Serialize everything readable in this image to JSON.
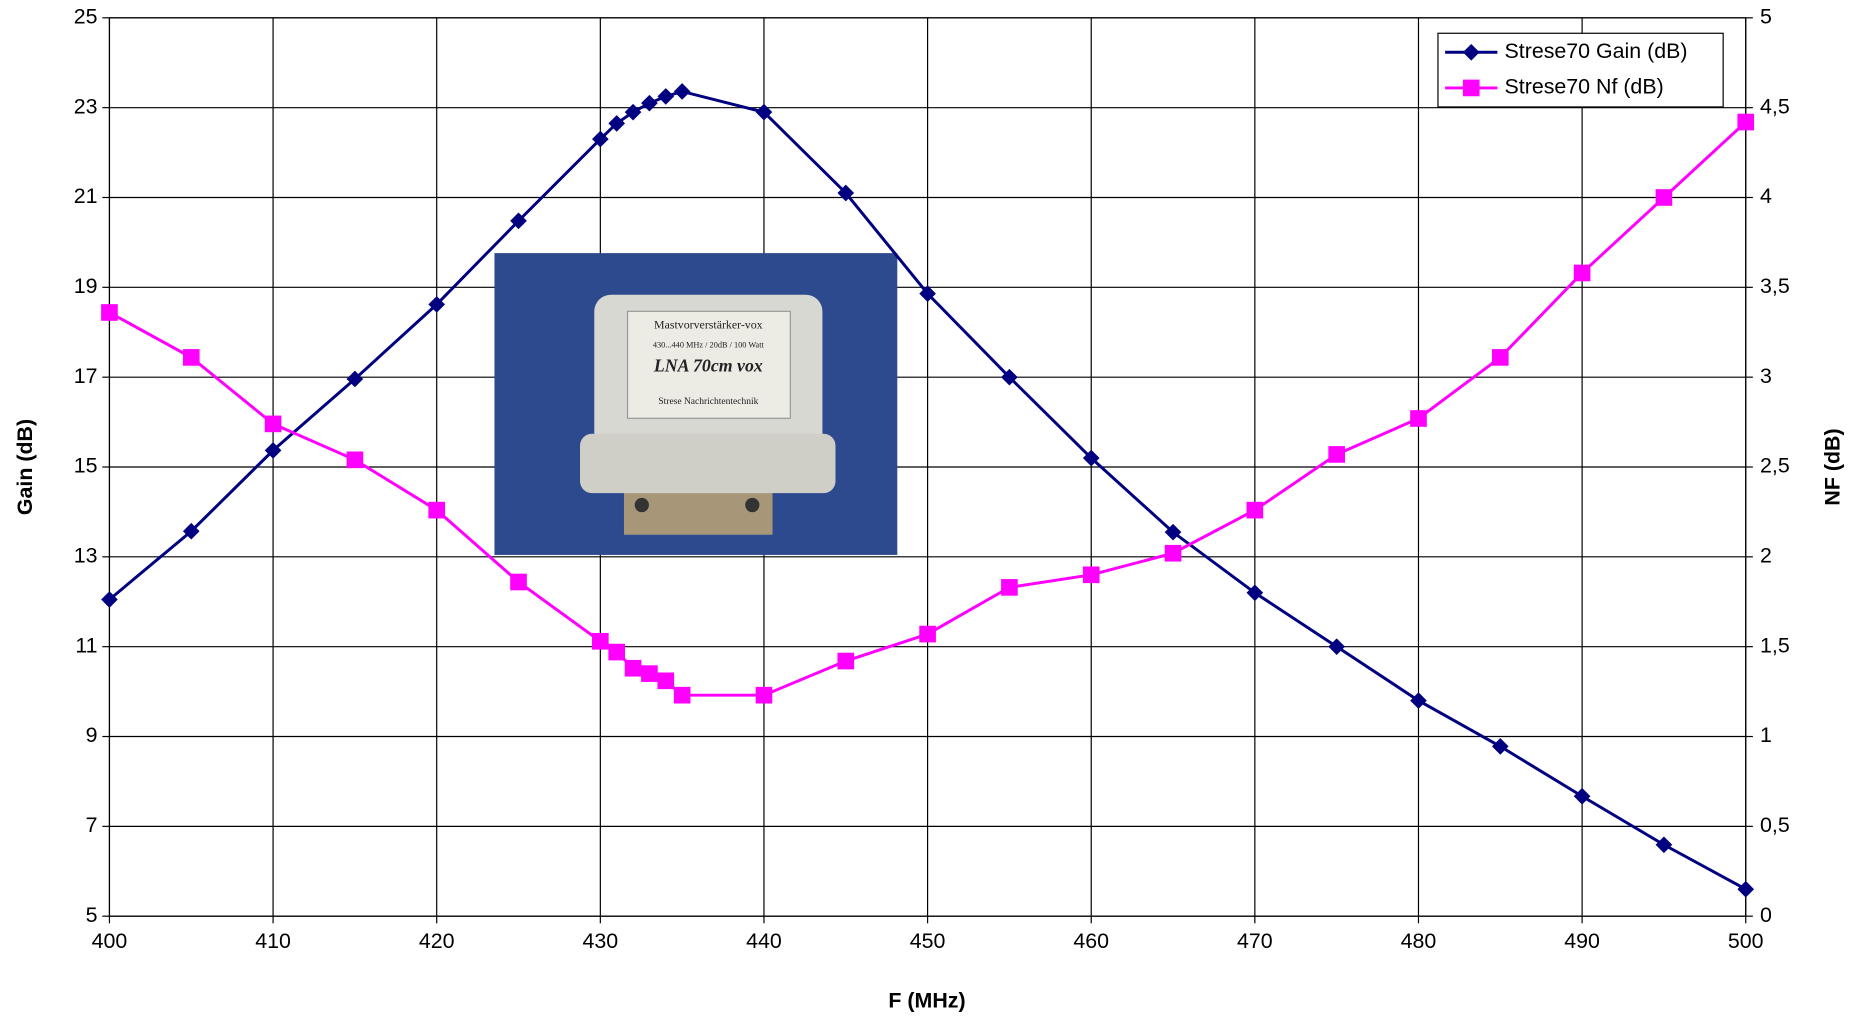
{
  "chart_data": {
    "type": "line",
    "xlabel": "F (MHz)",
    "ylabel": "Gain (dB)",
    "y2label": "NF (dB)",
    "x": [
      400,
      405,
      410,
      415,
      420,
      425,
      430,
      431,
      432,
      433,
      434,
      435,
      440,
      445,
      450,
      455,
      460,
      465,
      470,
      475,
      480,
      485,
      490,
      495,
      500
    ],
    "series": [
      {
        "name": "Strese70 Gain (dB)",
        "color": "#000080",
        "marker": "diamond",
        "values": [
          12.05,
          13.57,
          15.37,
          16.96,
          18.62,
          20.48,
          22.3,
          22.65,
          22.9,
          23.1,
          23.25,
          23.36,
          22.9,
          21.1,
          18.86,
          17.0,
          15.2,
          13.55,
          12.2,
          11.0,
          9.8,
          8.78,
          7.67,
          6.59,
          5.6
        ]
      },
      {
        "name": "Strese70 Nf (dB)",
        "color": "#ff00ff",
        "marker": "square",
        "axis": "y2",
        "values": [
          3.36,
          3.11,
          2.74,
          2.54,
          2.26,
          1.86,
          1.53,
          1.47,
          1.38,
          1.35,
          1.31,
          1.23,
          1.23,
          1.42,
          1.57,
          1.83,
          1.9,
          2.02,
          2.26,
          2.57,
          2.77,
          3.11,
          3.58,
          4.0,
          4.42
        ]
      }
    ],
    "xlim": [
      400,
      500
    ],
    "xticks": [
      400,
      410,
      420,
      430,
      440,
      450,
      460,
      470,
      480,
      490,
      500
    ],
    "ylim": [
      5,
      25
    ],
    "yticks": [
      5,
      7,
      9,
      11,
      13,
      15,
      17,
      19,
      21,
      23,
      25
    ],
    "y2lim": [
      0,
      5
    ],
    "y2ticks": [
      0,
      {
        "value": 0.5,
        "label": "0,5"
      },
      1,
      {
        "value": 1.5,
        "label": "1,5"
      },
      2,
      {
        "value": 2.5,
        "label": "2,5"
      },
      3,
      {
        "value": 3.5,
        "label": "3,5"
      },
      4,
      {
        "value": 4.5,
        "label": "4,5"
      },
      5
    ],
    "grid": true,
    "legend": "top-right"
  },
  "inset": {
    "lines": [
      "Mastvorverstärker-vox",
      "430...440 MHz / 20dB / 100 Watt",
      "LNA 70cm vox",
      "Strese Nachrichtentechnik"
    ]
  }
}
